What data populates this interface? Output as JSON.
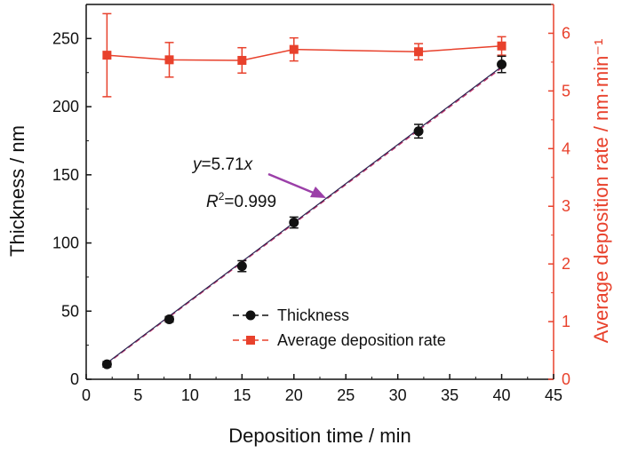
{
  "colors": {
    "thickness": "#111111",
    "rate": "#e8412c",
    "fit": "#c1336a",
    "arrow": "#9b3fa8",
    "axis": "#111111"
  },
  "chart_data": {
    "type": "scatter",
    "xlabel": "Deposition time / min",
    "ylabel_left": "Thickness / nm",
    "ylabel_right": "Average deposition rate / nm·min⁻¹",
    "xlim": [
      0,
      45
    ],
    "ylim_left": [
      0,
      275
    ],
    "ylim_right": [
      0,
      6.5
    ],
    "xticks": [
      0,
      5,
      10,
      15,
      20,
      25,
      30,
      35,
      40,
      45
    ],
    "yticks_left": [
      0,
      50,
      100,
      150,
      200,
      250
    ],
    "yticks_right": [
      0,
      1,
      2,
      3,
      4,
      5,
      6
    ],
    "series": [
      {
        "name": "Thickness",
        "axis": "left",
        "x": [
          2,
          8,
          15,
          20,
          32,
          40
        ],
        "y": [
          11,
          44,
          83,
          115,
          182,
          231
        ],
        "err": [
          2,
          2,
          4,
          4,
          5,
          6
        ]
      },
      {
        "name": "Average deposition rate",
        "axis": "right",
        "x": [
          2,
          8,
          15,
          20,
          32,
          40
        ],
        "y": [
          5.62,
          5.54,
          5.53,
          5.72,
          5.68,
          5.78
        ],
        "err": [
          0.72,
          0.3,
          0.22,
          0.2,
          0.14,
          0.16
        ]
      }
    ],
    "fit": {
      "slope": 5.71,
      "x_range": [
        2,
        40
      ]
    },
    "annotation": {
      "equation_y": "y",
      "equation_rest": "=5.71",
      "equation_x": "x",
      "r2_r": "R",
      "r2_sup": "2",
      "r2_val": "=0.999"
    },
    "legend_position": "lower-center",
    "grid": false
  }
}
